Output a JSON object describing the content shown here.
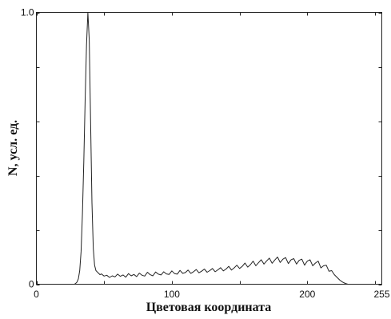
{
  "chart_data": {
    "type": "line",
    "xlabel": "Цветовая координата",
    "ylabel": "N, усл. ед.",
    "xlim": [
      0,
      255
    ],
    "ylim": [
      0,
      1.0
    ],
    "x_ticks": [
      "0",
      "100",
      "200",
      "255"
    ],
    "y_ticks": [
      "0",
      "1.0"
    ],
    "grid": false,
    "line_color": "#222222",
    "series": [
      {
        "x": [
          0,
          28,
          29,
          30,
          31,
          32,
          33,
          34,
          35,
          36,
          37,
          38,
          39,
          40,
          41,
          42,
          43,
          44,
          45,
          46,
          47,
          48,
          50,
          52,
          54,
          56,
          58,
          60,
          62,
          64,
          66,
          68,
          70,
          72,
          74,
          76,
          78,
          80,
          82,
          84,
          86,
          88,
          90,
          92,
          94,
          96,
          98,
          100,
          102,
          104,
          106,
          108,
          110,
          112,
          114,
          116,
          118,
          120,
          122,
          124,
          126,
          128,
          130,
          132,
          134,
          136,
          138,
          140,
          142,
          144,
          146,
          148,
          150,
          152,
          154,
          156,
          158,
          160,
          162,
          164,
          166,
          168,
          170,
          172,
          174,
          176,
          178,
          180,
          182,
          184,
          186,
          188,
          190,
          192,
          194,
          196,
          198,
          200,
          202,
          204,
          206,
          208,
          210,
          212,
          214,
          216,
          218,
          220,
          222,
          224,
          226,
          228,
          230,
          255
        ],
        "values": [
          0,
          0,
          0.003,
          0.008,
          0.02,
          0.05,
          0.12,
          0.26,
          0.45,
          0.68,
          0.88,
          1.0,
          0.9,
          0.6,
          0.3,
          0.13,
          0.07,
          0.05,
          0.045,
          0.04,
          0.035,
          0.038,
          0.03,
          0.033,
          0.025,
          0.031,
          0.027,
          0.037,
          0.029,
          0.034,
          0.026,
          0.039,
          0.031,
          0.036,
          0.028,
          0.041,
          0.033,
          0.03,
          0.044,
          0.035,
          0.031,
          0.045,
          0.037,
          0.034,
          0.046,
          0.038,
          0.036,
          0.049,
          0.039,
          0.037,
          0.051,
          0.04,
          0.043,
          0.052,
          0.04,
          0.046,
          0.054,
          0.042,
          0.048,
          0.056,
          0.044,
          0.05,
          0.058,
          0.046,
          0.053,
          0.061,
          0.049,
          0.056,
          0.066,
          0.052,
          0.06,
          0.07,
          0.058,
          0.066,
          0.078,
          0.063,
          0.072,
          0.085,
          0.068,
          0.079,
          0.09,
          0.074,
          0.086,
          0.096,
          0.077,
          0.089,
          0.1,
          0.08,
          0.092,
          0.098,
          0.076,
          0.09,
          0.094,
          0.074,
          0.088,
          0.092,
          0.07,
          0.085,
          0.09,
          0.068,
          0.078,
          0.085,
          0.06,
          0.068,
          0.07,
          0.048,
          0.05,
          0.035,
          0.025,
          0.015,
          0.008,
          0.003,
          0,
          0
        ]
      }
    ]
  }
}
